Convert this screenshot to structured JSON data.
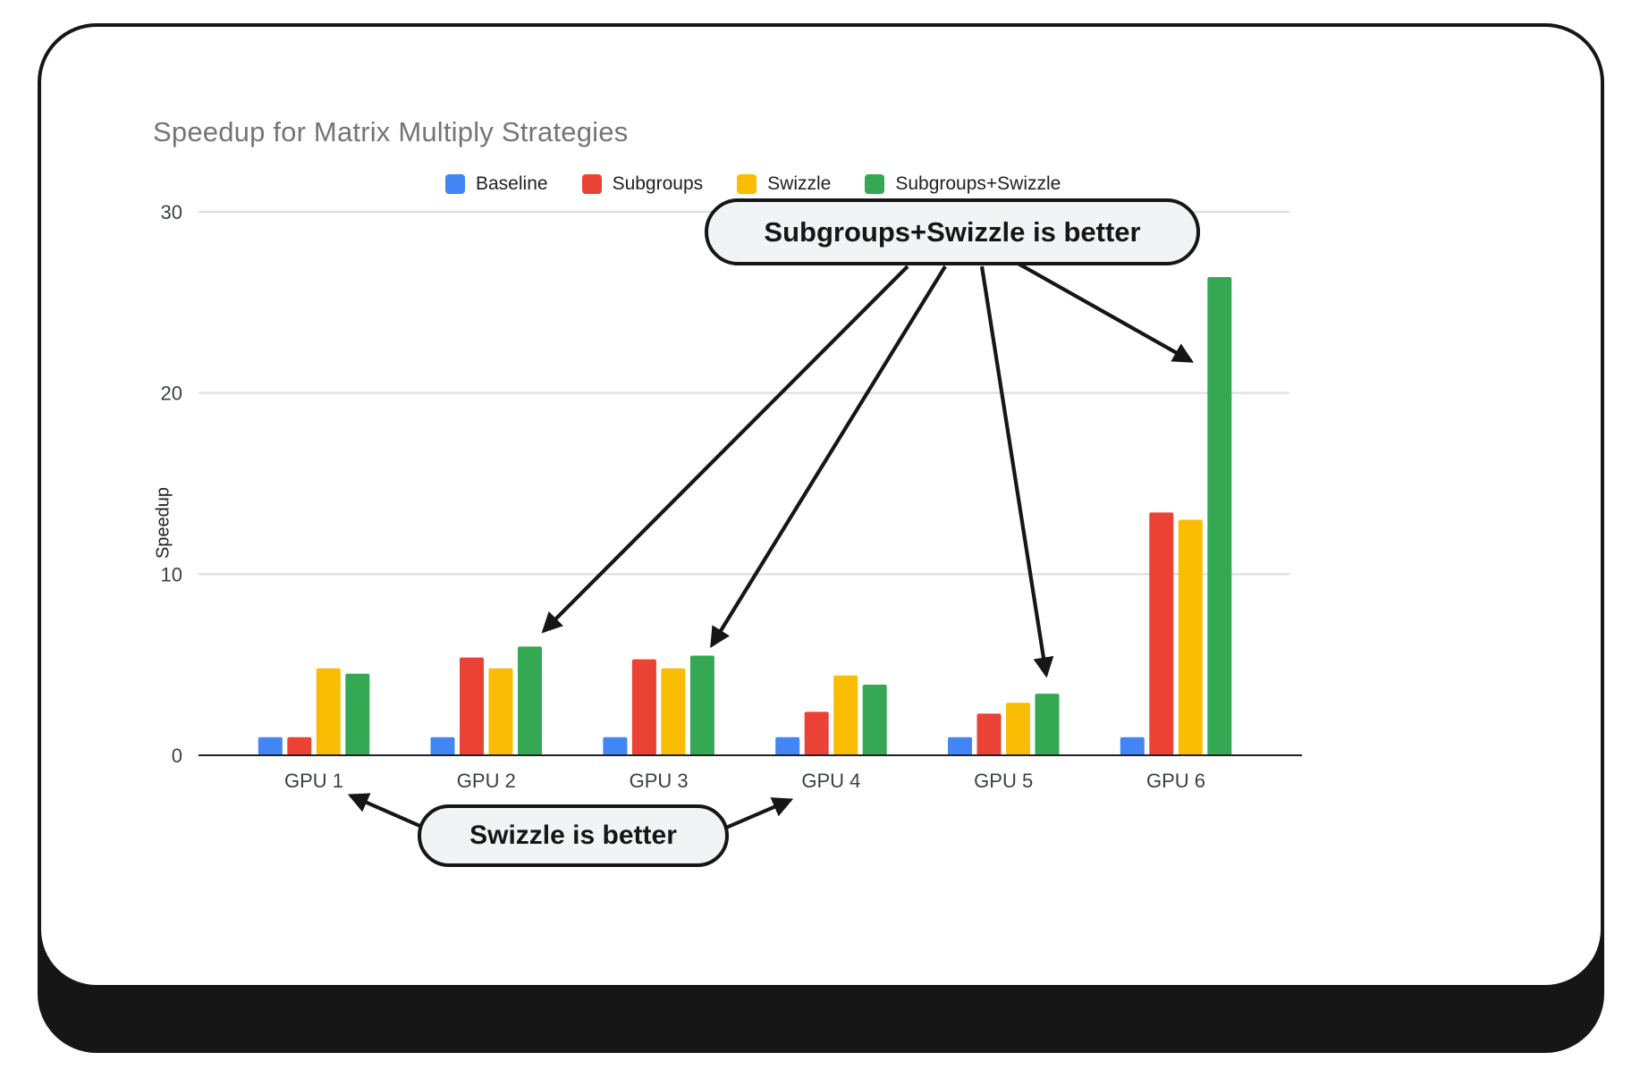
{
  "chart": {
    "title": "Speedup for Matrix Multiply Strategies",
    "ylabel": "Speedup"
  },
  "chart_data": {
    "type": "bar",
    "title": "Speedup for Matrix Multiply Strategies",
    "xlabel": "",
    "ylabel": "Speedup",
    "categories": [
      "GPU 1",
      "GPU 2",
      "GPU 3",
      "GPU 4",
      "GPU 5",
      "GPU 6"
    ],
    "series": [
      {
        "name": "Baseline",
        "color": "#4285F4",
        "values": [
          1.0,
          1.0,
          1.0,
          1.0,
          1.0,
          1.0
        ]
      },
      {
        "name": "Subgroups",
        "color": "#EA4335",
        "values": [
          1.0,
          5.4,
          5.3,
          2.4,
          2.3,
          13.4
        ]
      },
      {
        "name": "Swizzle",
        "color": "#FBBC04",
        "values": [
          4.8,
          4.8,
          4.8,
          4.4,
          2.9,
          13.0
        ]
      },
      {
        "name": "Subgroups+Swizzle",
        "color": "#34A853",
        "values": [
          4.5,
          6.0,
          5.5,
          3.9,
          3.4,
          26.4
        ]
      }
    ],
    "ylim": [
      0,
      30
    ],
    "yticks": [
      0,
      10,
      20,
      30
    ],
    "grid": true,
    "legend_position": "top"
  },
  "annotations": {
    "top": {
      "label": "Subgroups+Swizzle is better",
      "targets": [
        "GPU 2",
        "GPU 3",
        "GPU 5",
        "GPU 6"
      ]
    },
    "bottom": {
      "label": "Swizzle is better",
      "targets": [
        "GPU 1",
        "GPU 4"
      ]
    }
  }
}
